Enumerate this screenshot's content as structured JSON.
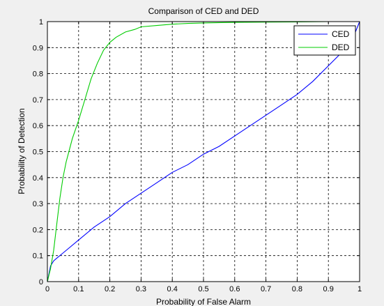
{
  "chart_data": {
    "type": "line",
    "title": "Comparison of CED and DED",
    "xlabel": "Probability of False Alarm",
    "ylabel": "Probability of Detection",
    "xlim": [
      0,
      1
    ],
    "ylim": [
      0,
      1
    ],
    "xticks": [
      "0",
      "0.1",
      "0.2",
      "0.3",
      "0.4",
      "0.5",
      "0.6",
      "0.7",
      "0.8",
      "0.9",
      "1"
    ],
    "yticks": [
      "0",
      "0.1",
      "0.2",
      "0.3",
      "0.4",
      "0.5",
      "0.6",
      "0.7",
      "0.8",
      "0.9",
      "1"
    ],
    "grid": true,
    "legend_position": "top-right",
    "series": [
      {
        "name": "CED",
        "color": "#0000ff",
        "x": [
          0,
          0.01,
          0.02,
          0.03,
          0.05,
          0.07,
          0.1,
          0.15,
          0.2,
          0.25,
          0.3,
          0.35,
          0.4,
          0.45,
          0.5,
          0.55,
          0.6,
          0.65,
          0.7,
          0.75,
          0.8,
          0.85,
          0.9,
          0.95,
          0.98,
          1
        ],
        "y": [
          0,
          0.06,
          0.08,
          0.09,
          0.11,
          0.13,
          0.16,
          0.21,
          0.25,
          0.3,
          0.34,
          0.38,
          0.42,
          0.45,
          0.49,
          0.52,
          0.56,
          0.6,
          0.64,
          0.68,
          0.72,
          0.77,
          0.83,
          0.89,
          0.94,
          1.0
        ]
      },
      {
        "name": "DED",
        "color": "#00cc00",
        "x": [
          0,
          0.01,
          0.02,
          0.03,
          0.04,
          0.05,
          0.06,
          0.08,
          0.1,
          0.12,
          0.14,
          0.16,
          0.18,
          0.2,
          0.22,
          0.25,
          0.28,
          0.3,
          0.35,
          0.4,
          0.45,
          0.5,
          0.6,
          0.7,
          0.8,
          0.9,
          1
        ],
        "y": [
          0,
          0.05,
          0.12,
          0.22,
          0.32,
          0.4,
          0.46,
          0.55,
          0.62,
          0.7,
          0.78,
          0.84,
          0.89,
          0.92,
          0.94,
          0.96,
          0.97,
          0.98,
          0.985,
          0.99,
          0.993,
          0.995,
          0.997,
          0.998,
          0.999,
          1.0,
          1.0
        ]
      }
    ]
  }
}
